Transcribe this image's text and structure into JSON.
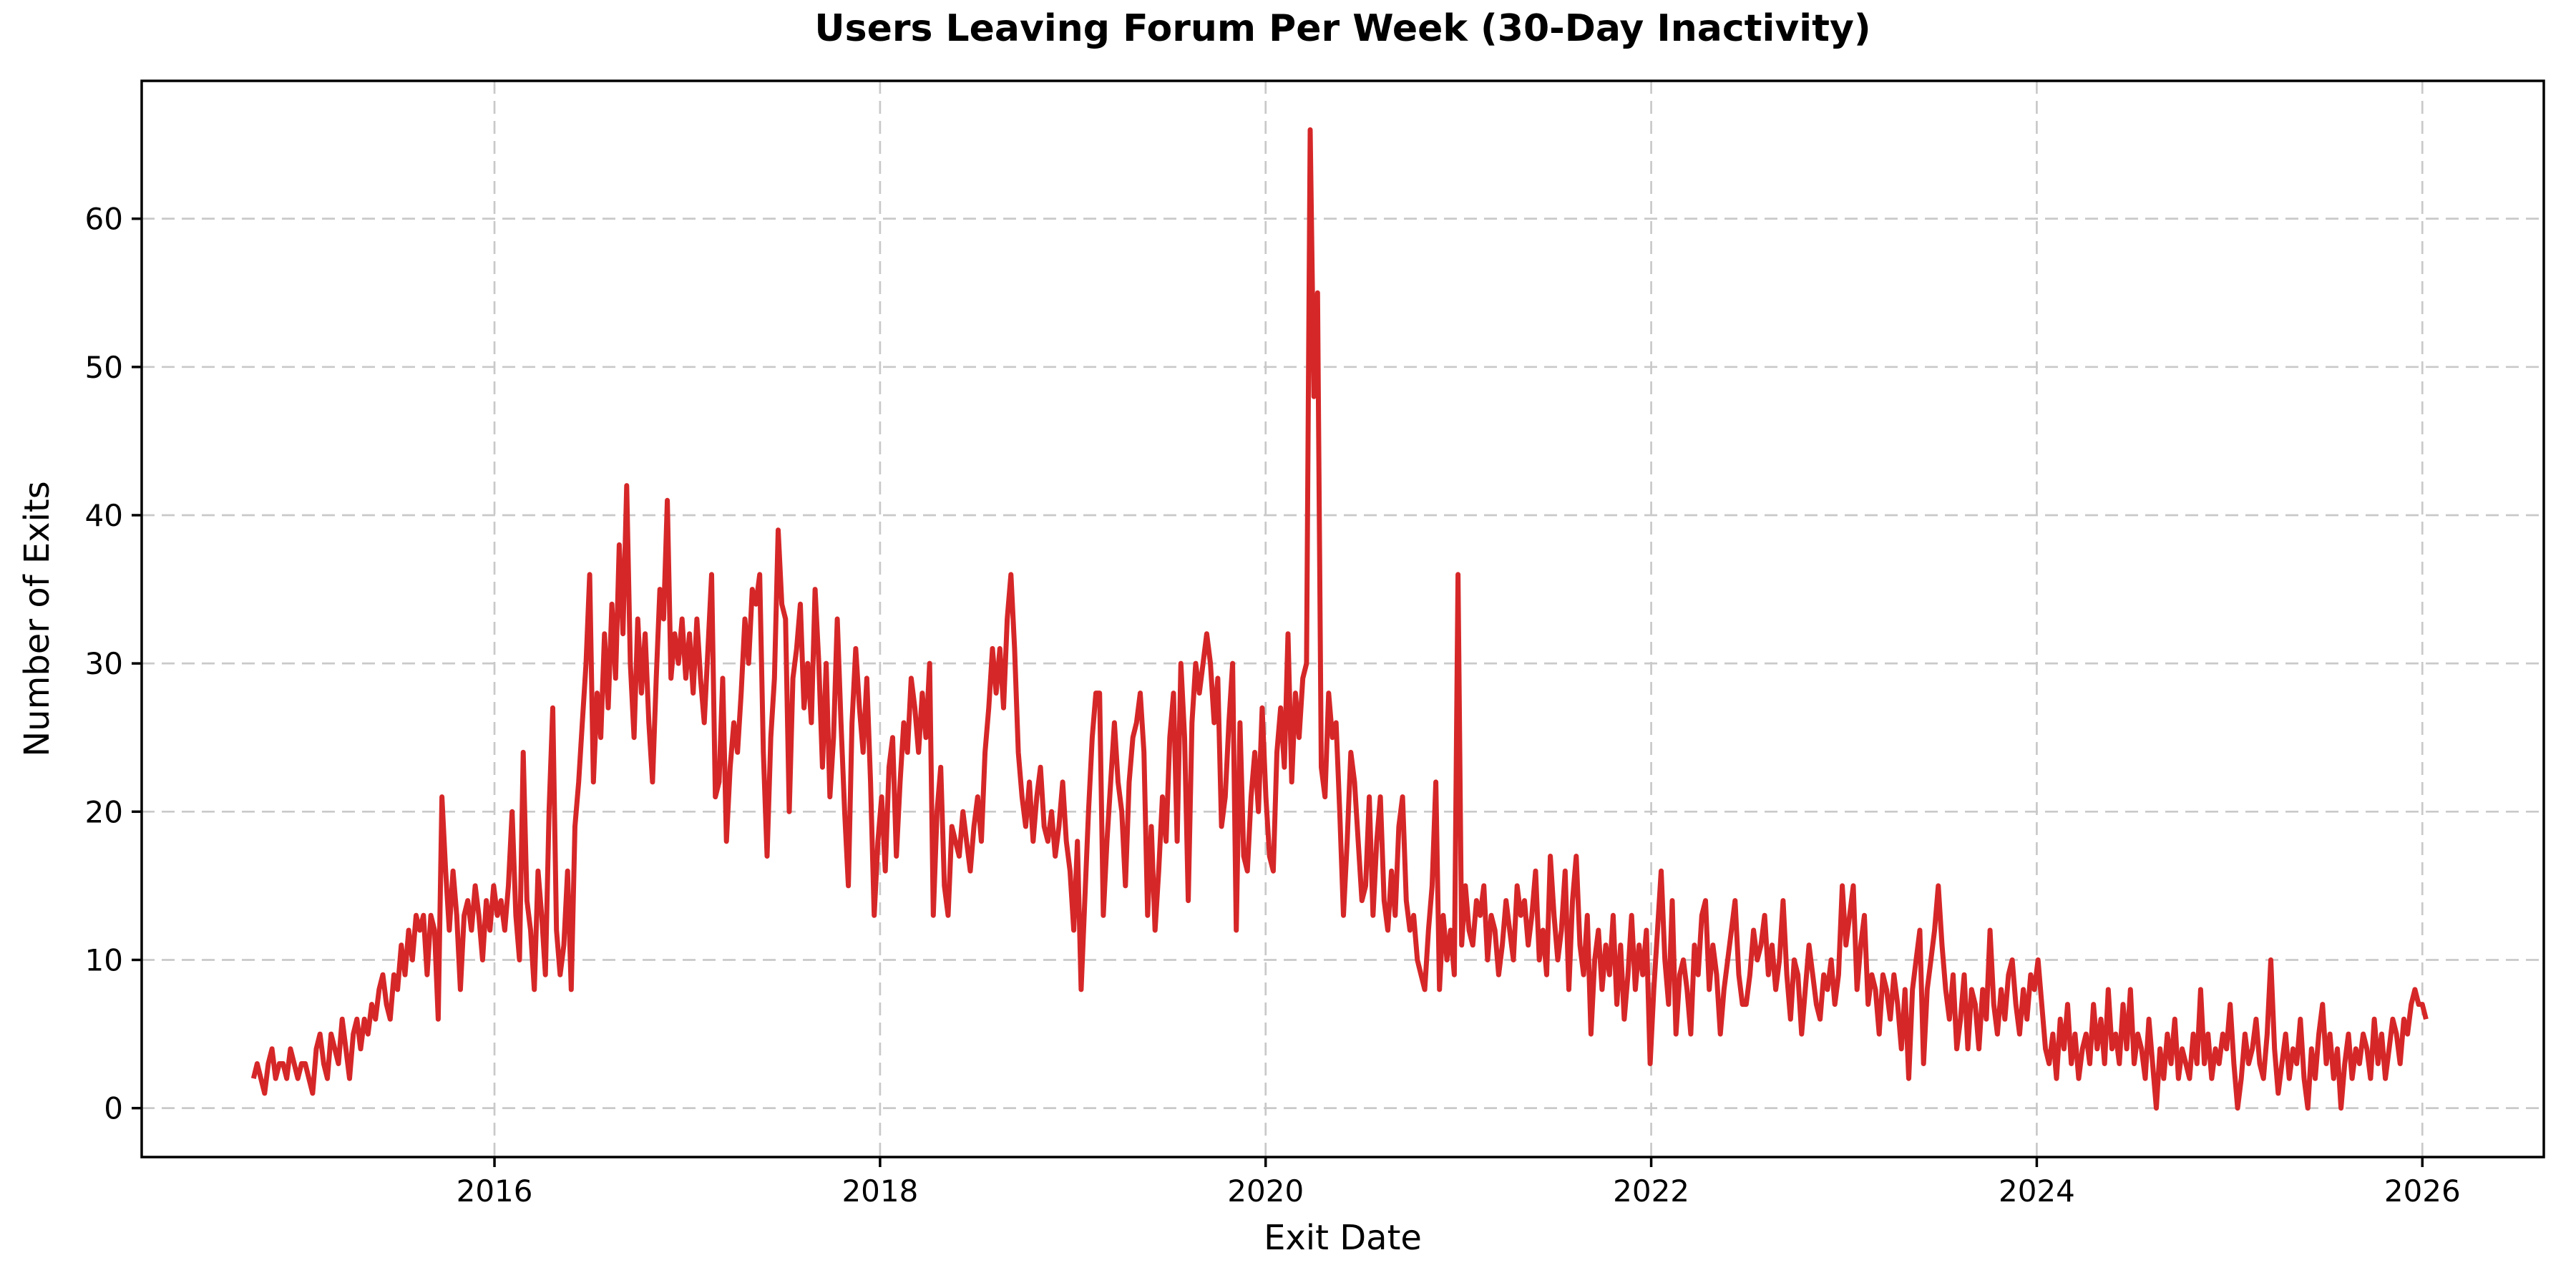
{
  "title": "Users Leaving Forum Per Week (30-Day Inactivity)",
  "axes": {
    "x_label": "Exit Date",
    "y_label": "Number of Exits"
  },
  "chart_data": {
    "type": "line",
    "title": "Users Leaving Forum Per Week (30-Day Inactivity)",
    "xlabel": "Exit Date",
    "ylabel": "Number of Exits",
    "legend": null,
    "grid": {
      "show": true,
      "style": "dashed",
      "color": "#c9c9c9"
    },
    "line_color": "#d62728",
    "background_color": "#ffffff",
    "spine_color": "#000000",
    "x_ticks": [
      2016,
      2018,
      2020,
      2022,
      2024,
      2026
    ],
    "y_ticks": [
      0,
      10,
      20,
      30,
      40,
      50,
      60
    ],
    "xlim": [
      2014.17,
      2026.63
    ],
    "ylim": [
      -3.3,
      69.3
    ],
    "x_unit": "decimal_year",
    "frequency": "weekly",
    "series": [
      {
        "name": "users_leaving_per_week",
        "x_start": 2014.75,
        "x_step": 0.019165,
        "values": [
          2,
          3,
          2,
          1,
          3,
          4,
          2,
          3,
          3,
          2,
          4,
          3,
          2,
          3,
          3,
          2,
          1,
          4,
          5,
          3,
          2,
          5,
          4,
          3,
          6,
          4,
          2,
          5,
          6,
          4,
          6,
          5,
          7,
          6,
          8,
          9,
          7,
          6,
          9,
          8,
          11,
          9,
          12,
          10,
          13,
          12,
          13,
          9,
          13,
          12,
          6,
          21,
          16,
          12,
          16,
          13,
          8,
          13,
          14,
          12,
          15,
          13,
          10,
          14,
          12,
          15,
          13,
          14,
          12,
          15,
          20,
          13,
          10,
          24,
          14,
          12,
          8,
          16,
          13,
          9,
          20,
          27,
          12,
          9,
          11,
          16,
          8,
          19,
          22,
          26,
          30,
          36,
          22,
          28,
          25,
          32,
          27,
          34,
          29,
          38,
          32,
          42,
          30,
          25,
          33,
          28,
          32,
          26,
          22,
          29,
          35,
          33,
          41,
          29,
          32,
          30,
          33,
          29,
          32,
          28,
          33,
          29,
          26,
          31,
          36,
          21,
          22,
          29,
          18,
          23,
          26,
          24,
          28,
          33,
          30,
          35,
          34,
          36,
          24,
          17,
          25,
          29,
          39,
          34,
          33,
          20,
          29,
          31,
          34,
          27,
          30,
          26,
          35,
          30,
          23,
          30,
          21,
          25,
          33,
          26,
          20,
          15,
          26,
          31,
          27,
          24,
          29,
          22,
          13,
          18,
          21,
          16,
          23,
          25,
          17,
          22,
          26,
          24,
          29,
          27,
          24,
          28,
          25,
          30,
          13,
          20,
          23,
          15,
          13,
          19,
          18,
          17,
          20,
          18,
          16,
          19,
          21,
          18,
          24,
          27,
          31,
          28,
          31,
          27,
          33,
          36,
          31,
          24,
          21,
          19,
          22,
          18,
          21,
          23,
          19,
          18,
          20,
          17,
          19,
          22,
          18,
          16,
          12,
          18,
          8,
          14,
          20,
          25,
          28,
          28,
          13,
          18,
          22,
          26,
          22,
          20,
          15,
          22,
          25,
          26,
          28,
          24,
          13,
          19,
          12,
          16,
          21,
          18,
          25,
          28,
          18,
          30,
          25,
          14,
          26,
          30,
          28,
          30,
          32,
          30,
          26,
          29,
          19,
          21,
          26,
          30,
          12,
          26,
          17,
          16,
          21,
          24,
          20,
          27,
          21,
          17,
          16,
          24,
          27,
          23,
          32,
          22,
          28,
          25,
          29,
          30,
          66,
          48,
          55,
          23,
          21,
          28,
          25,
          26,
          20,
          13,
          18,
          24,
          22,
          18,
          14,
          15,
          21,
          13,
          18,
          21,
          14,
          12,
          16,
          13,
          19,
          21,
          14,
          12,
          13,
          10,
          9,
          8,
          12,
          15,
          22,
          8,
          13,
          10,
          12,
          9,
          36,
          11,
          15,
          12,
          11,
          14,
          13,
          15,
          10,
          13,
          12,
          9,
          11,
          14,
          12,
          10,
          15,
          13,
          14,
          11,
          13,
          16,
          10,
          12,
          9,
          17,
          13,
          10,
          12,
          16,
          8,
          14,
          17,
          11,
          9,
          13,
          5,
          10,
          12,
          8,
          11,
          9,
          13,
          7,
          11,
          6,
          9,
          13,
          8,
          11,
          9,
          12,
          3,
          8,
          12,
          16,
          10,
          7,
          14,
          5,
          9,
          10,
          8,
          5,
          11,
          9,
          13,
          14,
          8,
          11,
          9,
          5,
          8,
          10,
          12,
          14,
          9,
          7,
          7,
          9,
          12,
          10,
          11,
          13,
          9,
          11,
          8,
          10,
          14,
          9,
          6,
          10,
          9,
          5,
          8,
          11,
          9,
          7,
          6,
          9,
          8,
          10,
          7,
          9,
          15,
          11,
          13,
          15,
          8,
          11,
          13,
          7,
          9,
          8,
          5,
          9,
          8,
          6,
          9,
          7,
          4,
          8,
          2,
          8,
          10,
          12,
          3,
          8,
          10,
          12,
          15,
          11,
          8,
          6,
          9,
          4,
          6,
          9,
          4,
          8,
          7,
          4,
          8,
          6,
          12,
          7,
          5,
          8,
          6,
          9,
          10,
          7,
          5,
          8,
          6,
          9,
          8,
          10,
          7,
          4,
          3,
          5,
          2,
          6,
          4,
          7,
          3,
          5,
          2,
          4,
          5,
          3,
          7,
          4,
          6,
          3,
          8,
          4,
          5,
          3,
          7,
          4,
          8,
          3,
          5,
          4,
          2,
          6,
          3,
          0,
          4,
          2,
          5,
          3,
          6,
          2,
          4,
          3,
          2,
          5,
          3,
          8,
          3,
          5,
          2,
          4,
          3,
          5,
          4,
          7,
          3,
          0,
          2,
          5,
          3,
          4,
          6,
          3,
          2,
          5,
          10,
          4,
          1,
          3,
          5,
          2,
          4,
          3,
          6,
          2,
          0,
          4,
          2,
          5,
          7,
          3,
          5,
          2,
          4,
          0,
          3,
          5,
          2,
          4,
          3,
          5,
          4,
          2,
          6,
          3,
          5,
          2,
          4,
          6,
          5,
          3,
          6,
          5,
          7,
          8,
          7,
          7,
          6
        ]
      }
    ]
  }
}
